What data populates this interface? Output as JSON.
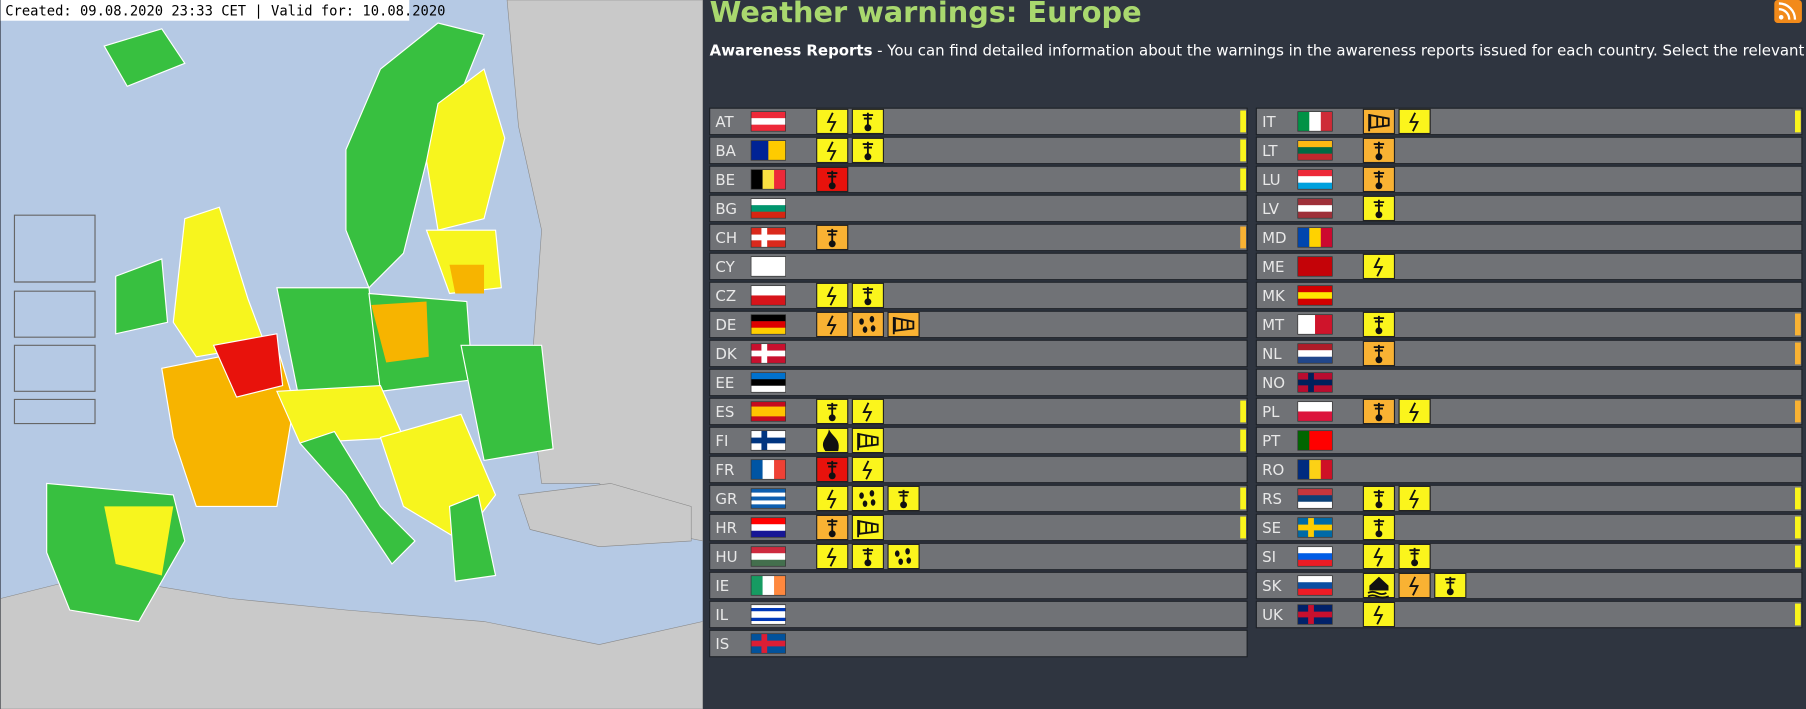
{
  "header": {
    "title": "Weather warnings: Europe",
    "timestamp": "Created: 09.08.2020 23:33 CET | Valid for: 10.08.2020"
  },
  "awareness": {
    "label": "Awareness Reports",
    "text": "- You can find detailed information about the warnings in the awareness reports issued for each country. Select the relevant country."
  },
  "countries": {
    "left": [
      "AT",
      "BA",
      "BE",
      "BG",
      "CH",
      "CY",
      "CZ",
      "DE",
      "DK",
      "EE",
      "ES",
      "FI",
      "FR",
      "GR",
      "HR",
      "HU",
      "IE",
      "IL",
      "IS"
    ],
    "right": [
      "IT",
      "LT",
      "LU",
      "LV",
      "MD",
      "ME",
      "MK",
      "MT",
      "NL",
      "NO",
      "PL",
      "PT",
      "RO",
      "RS",
      "SE",
      "SI",
      "SK",
      "UK"
    ]
  }
}
